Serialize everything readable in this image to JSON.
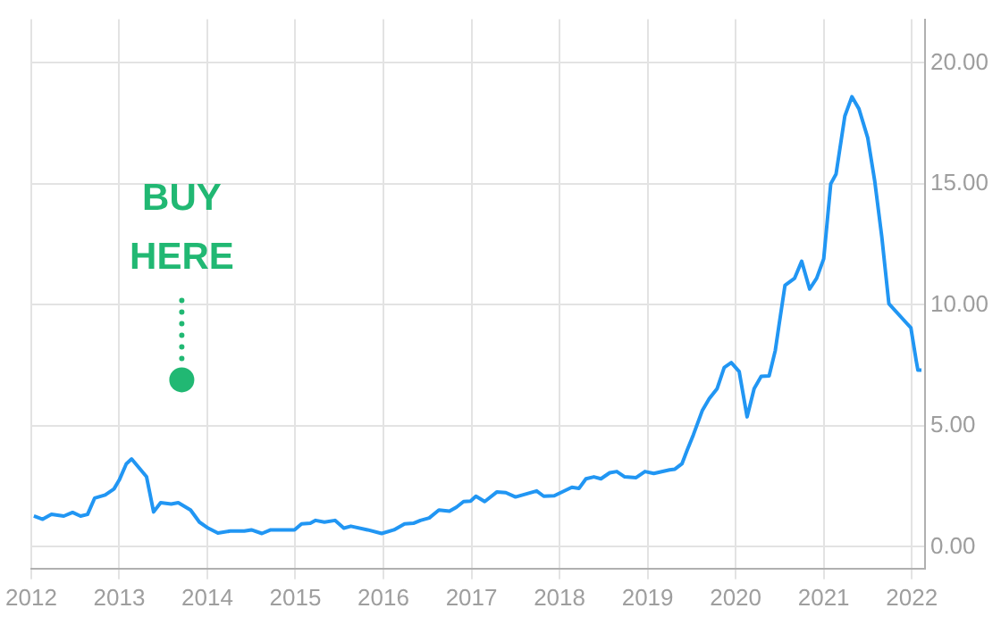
{
  "chart_data": {
    "type": "line",
    "x": [
      2012.03,
      2012.13,
      2012.23,
      2012.37,
      2012.47,
      2012.56,
      2012.64,
      2012.72,
      2012.84,
      2012.94,
      2013.0,
      2013.08,
      2013.14,
      2013.31,
      2013.39,
      2013.47,
      2013.59,
      2013.67,
      2013.81,
      2013.91,
      2014.01,
      2014.12,
      2014.26,
      2014.42,
      2014.5,
      2014.62,
      2014.72,
      2014.99,
      2015.07,
      2015.17,
      2015.23,
      2015.33,
      2015.45,
      2015.55,
      2015.63,
      2015.82,
      2015.98,
      2016.12,
      2016.24,
      2016.34,
      2016.42,
      2016.52,
      2016.63,
      2016.75,
      2016.83,
      2016.91,
      2016.99,
      2017.05,
      2017.15,
      2017.29,
      2017.39,
      2017.5,
      2017.74,
      2017.82,
      2017.94,
      2018.14,
      2018.22,
      2018.3,
      2018.39,
      2018.47,
      2018.57,
      2018.65,
      2018.74,
      2018.87,
      2018.97,
      2019.07,
      2019.25,
      2019.31,
      2019.39,
      2019.45,
      2019.52,
      2019.62,
      2019.7,
      2019.79,
      2019.87,
      2019.95,
      2020.04,
      2020.13,
      2020.21,
      2020.29,
      2020.38,
      2020.45,
      2020.49,
      2020.56,
      2020.67,
      2020.75,
      2020.84,
      2020.92,
      2021.0,
      2021.08,
      2021.14,
      2021.24,
      2021.32,
      2021.4,
      2021.5,
      2021.58,
      2021.66,
      2021.74,
      2021.99,
      2022.05,
      2022.07,
      2022.11
    ],
    "series": [
      {
        "color": "#2196f3",
        "values": [
          1.27,
          1.14,
          1.34,
          1.27,
          1.42,
          1.27,
          1.34,
          2.01,
          2.14,
          2.39,
          2.76,
          3.43,
          3.63,
          2.89,
          1.44,
          1.82,
          1.77,
          1.82,
          1.52,
          1.02,
          0.77,
          0.57,
          0.65,
          0.65,
          0.7,
          0.55,
          0.7,
          0.7,
          0.95,
          0.97,
          1.09,
          1.02,
          1.09,
          0.77,
          0.85,
          0.7,
          0.55,
          0.7,
          0.95,
          0.97,
          1.09,
          1.19,
          1.52,
          1.47,
          1.64,
          1.87,
          1.89,
          2.09,
          1.87,
          2.27,
          2.24,
          2.06,
          2.31,
          2.09,
          2.11,
          2.46,
          2.41,
          2.81,
          2.89,
          2.81,
          3.06,
          3.11,
          2.89,
          2.86,
          3.11,
          3.03,
          3.18,
          3.21,
          3.43,
          4.0,
          4.63,
          5.62,
          6.12,
          6.54,
          7.41,
          7.61,
          7.24,
          5.37,
          6.54,
          7.04,
          7.06,
          8.11,
          9.1,
          10.8,
          11.1,
          11.8,
          10.65,
          11.1,
          11.9,
          15.0,
          15.4,
          17.8,
          18.6,
          18.1,
          16.9,
          15.1,
          12.8,
          10.05,
          9.05,
          7.7,
          7.3,
          7.3
        ]
      }
    ],
    "xlim": [
      2012.0,
      2022.15
    ],
    "xticks": [
      2012,
      2013,
      2014,
      2015,
      2016,
      2017,
      2018,
      2019,
      2020,
      2021,
      2022
    ],
    "ylim": [
      -0.9,
      21.8
    ],
    "yticks": [
      {
        "value": 0,
        "label": "0.00"
      },
      {
        "value": 5,
        "label": "5.00"
      },
      {
        "value": 10,
        "label": "10.00"
      },
      {
        "value": 15,
        "label": "15.00"
      },
      {
        "value": 20,
        "label": "20.00"
      }
    ],
    "grid": true,
    "legend": false,
    "marker": "none",
    "line_style": "solid",
    "annotations": [
      {
        "text": "BUY HERE",
        "x": 2013.71,
        "y": 6.9
      }
    ]
  }
}
